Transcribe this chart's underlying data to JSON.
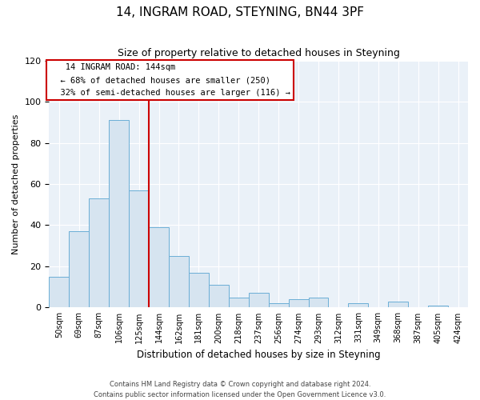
{
  "title": "14, INGRAM ROAD, STEYNING, BN44 3PF",
  "subtitle": "Size of property relative to detached houses in Steyning",
  "xlabel": "Distribution of detached houses by size in Steyning",
  "ylabel": "Number of detached properties",
  "bin_labels": [
    "50sqm",
    "69sqm",
    "87sqm",
    "106sqm",
    "125sqm",
    "144sqm",
    "162sqm",
    "181sqm",
    "200sqm",
    "218sqm",
    "237sqm",
    "256sqm",
    "274sqm",
    "293sqm",
    "312sqm",
    "331sqm",
    "349sqm",
    "368sqm",
    "387sqm",
    "405sqm",
    "424sqm"
  ],
  "bar_values": [
    15,
    37,
    53,
    91,
    57,
    39,
    25,
    17,
    11,
    5,
    7,
    2,
    4,
    5,
    0,
    2,
    0,
    3,
    0,
    1,
    0
  ],
  "bar_color": "#d6e4f0",
  "bar_edge_color": "#6baed6",
  "vline_index": 5,
  "vline_color": "#cc0000",
  "ylim": [
    0,
    120
  ],
  "yticks": [
    0,
    20,
    40,
    60,
    80,
    100,
    120
  ],
  "annotation_title": "14 INGRAM ROAD: 144sqm",
  "annotation_line1": "← 68% of detached houses are smaller (250)",
  "annotation_line2": "32% of semi-detached houses are larger (116) →",
  "annotation_box_color": "#ffffff",
  "annotation_box_edge_color": "#cc0000",
  "footnote1": "Contains HM Land Registry data © Crown copyright and database right 2024.",
  "footnote2": "Contains public sector information licensed under the Open Government Licence v3.0.",
  "background_color": "#eaf1f8",
  "grid_color": "#ffffff"
}
